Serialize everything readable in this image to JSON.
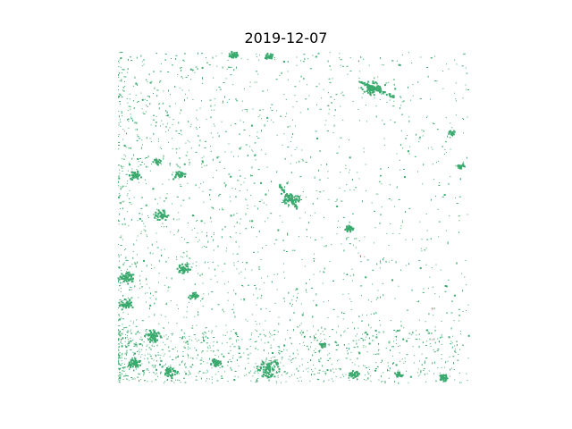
{
  "title": "2019-12-07",
  "colors": {
    "background": "#ffffff",
    "mask": "#3aaa6e"
  }
}
